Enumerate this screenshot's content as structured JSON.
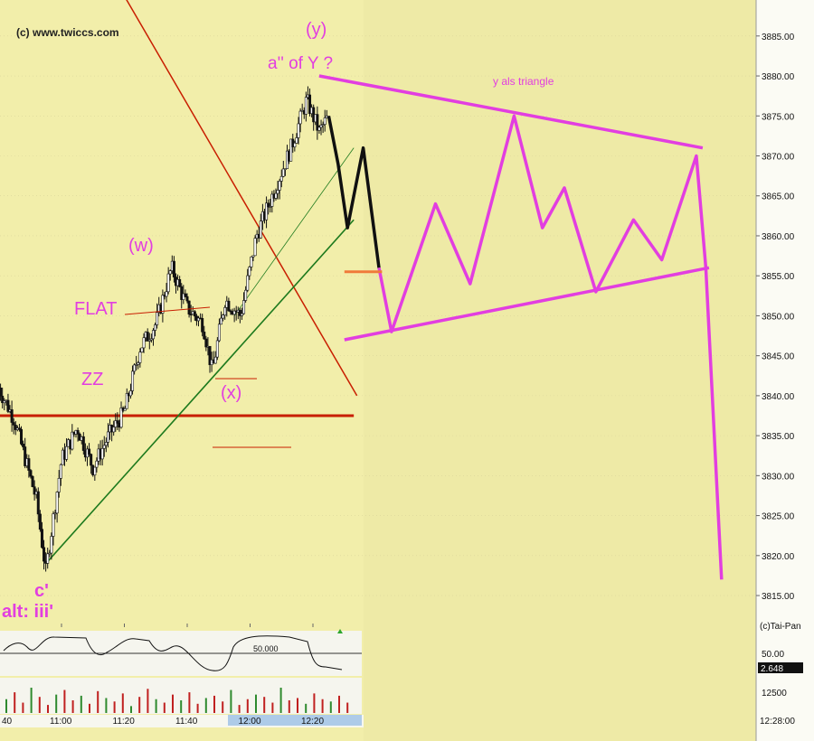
{
  "watermark": "(c) www.twiccs.com",
  "credit": "(c)Tai-Pan",
  "colors": {
    "background": "#f2eeaa",
    "drawn_area": "#eeeaa6",
    "annotation": "#e23ee0",
    "trendline_red": "#c81e00",
    "trendline_green": "#1e7a1e",
    "projection_black": "#101010",
    "support_orange": "#f07a3a",
    "candles": "#111111"
  },
  "labels": {
    "y_wave": "(y)",
    "a_of_y": "a'' of Y ?",
    "w_wave": "(w)",
    "x_wave": "(x)",
    "flat": "FLAT",
    "zz": "ZZ",
    "c_prime": "c'",
    "alt": "alt: iii'",
    "triangle": "y als triangle"
  },
  "indicator": {
    "level_label": "50.000",
    "axis_top": "50.00",
    "axis_value": "2.648"
  },
  "volume": {
    "axis_label": "12500",
    "bars": [
      12,
      18,
      9,
      22,
      14,
      7,
      16,
      20,
      11,
      15,
      8,
      19,
      13,
      10,
      17,
      6,
      14,
      21,
      12,
      9,
      16,
      11,
      18,
      8,
      13,
      15,
      10,
      20,
      7,
      12,
      16,
      14,
      9,
      22,
      11,
      13,
      8,
      17,
      12,
      10,
      15,
      9
    ]
  },
  "time_axis": {
    "left_partial": "40",
    "current_time": "12:28:00"
  },
  "chart_data": {
    "type": "candlestick",
    "title": "",
    "xlabel": "",
    "ylabel": "",
    "ylim": [
      3811.5,
      3889.5
    ],
    "x_ticks": [
      "11:00",
      "11:20",
      "11:40",
      "12:00",
      "12:20"
    ],
    "y_ticks": [
      3815.0,
      3820.0,
      3825.0,
      3830.0,
      3835.0,
      3840.0,
      3845.0,
      3850.0,
      3855.0,
      3860.0,
      3865.0,
      3870.0,
      3875.0,
      3880.0,
      3885.0
    ],
    "y_tick_labels": [
      "3815.00",
      "3820.00",
      "3825.00",
      "3830.00",
      "3835.00",
      "3840.00",
      "3845.00",
      "3850.00",
      "3855.00",
      "3860.00",
      "3865.00",
      "3870.00",
      "3875.00",
      "3880.00",
      "3885.00"
    ],
    "price_anchors": [
      {
        "t": "10:40",
        "price": 3841
      },
      {
        "t": "10:45",
        "price": 3837
      },
      {
        "t": "10:52",
        "price": 3827
      },
      {
        "t": "10:55",
        "price": 3818
      },
      {
        "t": "11:00",
        "price": 3832
      },
      {
        "t": "11:05",
        "price": 3836
      },
      {
        "t": "11:10",
        "price": 3831
      },
      {
        "t": "11:15",
        "price": 3835
      },
      {
        "t": "11:20",
        "price": 3838
      },
      {
        "t": "11:25",
        "price": 3846
      },
      {
        "t": "11:30",
        "price": 3849
      },
      {
        "t": "11:35",
        "price": 3856
      },
      {
        "t": "11:40",
        "price": 3851
      },
      {
        "t": "11:45",
        "price": 3849
      },
      {
        "t": "11:48",
        "price": 3843
      },
      {
        "t": "11:52",
        "price": 3852
      },
      {
        "t": "11:57",
        "price": 3850
      },
      {
        "t": "12:02",
        "price": 3860
      },
      {
        "t": "12:08",
        "price": 3866
      },
      {
        "t": "12:13",
        "price": 3871
      },
      {
        "t": "12:18",
        "price": 3877
      },
      {
        "t": "12:22",
        "price": 3873
      },
      {
        "t": "12:25",
        "price": 3875
      }
    ],
    "projection_black": [
      {
        "t": "12:25",
        "price": 3875
      },
      {
        "t": "12:28",
        "price": 3869
      },
      {
        "t": "12:31",
        "price": 3861
      },
      {
        "t": "12:36",
        "price": 3871
      },
      {
        "t": "12:41",
        "price": 3856
      }
    ],
    "projection_magenta": [
      {
        "t": "12:41",
        "price": 3856
      },
      {
        "t": "12:45",
        "price": 3848
      },
      {
        "t": "12:59",
        "price": 3864
      },
      {
        "t": "13:10",
        "price": 3854
      },
      {
        "t": "13:24",
        "price": 3875
      },
      {
        "t": "13:33",
        "price": 3861
      },
      {
        "t": "13:40",
        "price": 3866
      },
      {
        "t": "13:50",
        "price": 3853
      },
      {
        "t": "14:02",
        "price": 3862
      },
      {
        "t": "14:11",
        "price": 3857
      },
      {
        "t": "14:22",
        "price": 3870
      },
      {
        "t": "14:25",
        "price": 3856
      },
      {
        "t": "14:30",
        "price": 3817
      }
    ],
    "triangle_upper": [
      {
        "t": "12:22",
        "price": 3880
      },
      {
        "t": "14:24",
        "price": 3871
      }
    ],
    "triangle_lower": [
      {
        "t": "12:30",
        "price": 3847
      },
      {
        "t": "14:26",
        "price": 3856
      }
    ],
    "support_orange": [
      {
        "t": "12:30",
        "price": 3855.5
      },
      {
        "t": "12:42",
        "price": 3855.5
      }
    ],
    "horizontal_red": [
      {
        "t": "10:40",
        "price": 3837.5
      },
      {
        "t": "12:33",
        "price": 3837.5
      }
    ],
    "red_downtrend": [
      {
        "t": "11:20",
        "price": 3890
      },
      {
        "t": "12:34",
        "price": 3840
      }
    ],
    "green_trend_1": [
      {
        "t": "10:55",
        "price": 3819
      },
      {
        "t": "12:33",
        "price": 3862
      }
    ],
    "green_trend_2": [
      {
        "t": "11:55",
        "price": 3850
      },
      {
        "t": "12:33",
        "price": 3871
      }
    ]
  }
}
